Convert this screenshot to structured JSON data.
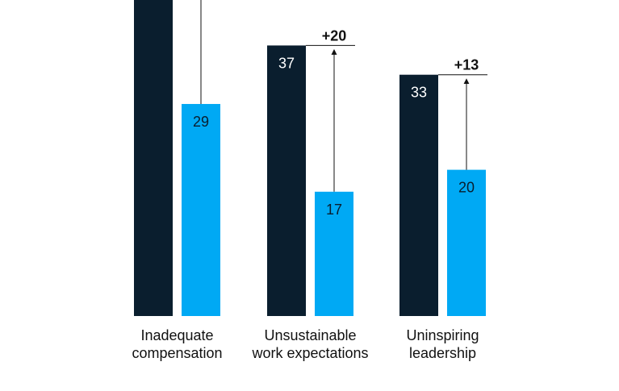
{
  "chart_data": {
    "type": "bar",
    "categories": [
      {
        "lines": [
          "Inadequate",
          "compensation"
        ]
      },
      {
        "lines": [
          "Unsustainable",
          "work expectations"
        ]
      },
      {
        "lines": [
          "Uninspiring",
          "leadership"
        ]
      }
    ],
    "series": [
      {
        "values": [
          null,
          37,
          33
        ],
        "color": "#0a1e2e",
        "label_color": "#ffffff"
      },
      {
        "values": [
          29,
          17,
          20
        ],
        "color": "#00a9f4",
        "label_color": "#0a1e2e"
      }
    ],
    "deltas": [
      null,
      "+20",
      "+13"
    ],
    "ylim": [
      0,
      44
    ],
    "grid": false,
    "legend": "none"
  }
}
